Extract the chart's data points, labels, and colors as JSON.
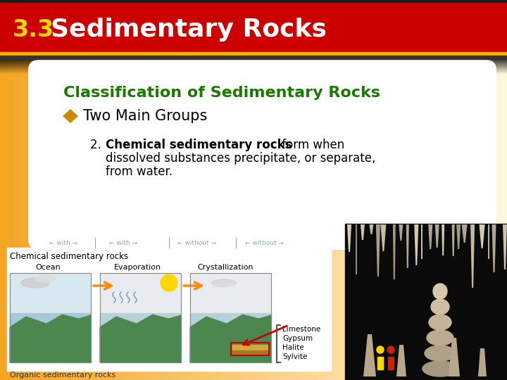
{
  "title_number": "3.3",
  "title_text": "  Sedimentary Rocks",
  "title_bg_color": "#CC0000",
  "title_number_color": "#FFD700",
  "title_text_color": "#FFFFFF",
  "header_dark_border": "#1A1A1A",
  "header_gold_border": "#FFB300",
  "body_bg_top": "#F5C518",
  "body_bg_bottom": "#FDE990",
  "card_bg_color": "#FFFFFF",
  "classification_title": "Classification of Sedimentary Rocks",
  "classification_title_color": "#1A7A00",
  "bullet_color": "#CC8800",
  "bullet_text": "Two Main Groups",
  "bullet_text_color": "#000000",
  "point2_bold": "Chemical sedimentary rocks",
  "point2_normal_line1": " form when",
  "point2_line2": "dissolved substances precipitate, or separate,",
  "point2_line3": "from water.",
  "point2_color": "#000000",
  "diagram_label": "Chemical sedimentary rocks",
  "diagram_sublabels": [
    "Ocean",
    "Evaporation",
    "Crystallization"
  ],
  "diagram_list": [
    "Limestone",
    "Gypsum",
    "Halite",
    "Sylvite"
  ],
  "fig_width": 7.2,
  "fig_height": 5.4,
  "dpi": 100
}
